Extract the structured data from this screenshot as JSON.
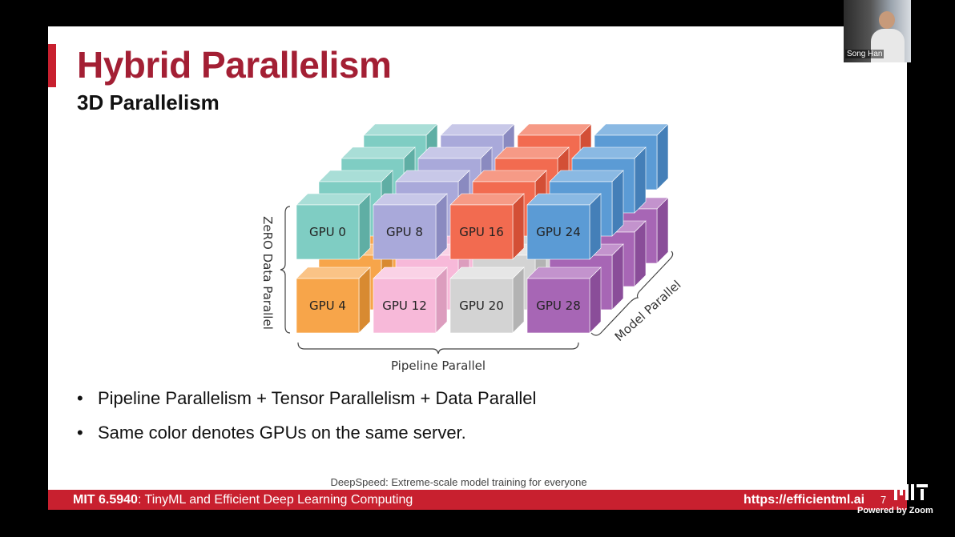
{
  "zoom": {
    "participant_name": "Song Han",
    "powered_by": "Powered by Zoom"
  },
  "slide": {
    "title": "Hybrid Parallelism",
    "subtitle": "3D Parallelism",
    "diagram": {
      "top_row": [
        "GPU 0",
        "GPU 8",
        "GPU 16",
        "GPU 24"
      ],
      "bottom_row": [
        "GPU 4",
        "GPU 12",
        "GPU 20",
        "GPU 28"
      ],
      "vertical_axis": "ZeRO Data Parallel",
      "horizontal_axis": "Pipeline Parallel",
      "depth_axis": "Model Parallel"
    },
    "bullets": [
      "Pipeline Parallelism + Tensor Parallelism + Data Parallel",
      "Same color denotes GPUs on the same server."
    ],
    "citation": "DeepSpeed: Extreme-scale model training for everyone",
    "footer": {
      "course_code": "MIT 6.5940",
      "course_name": ": TinyML and Efficient Deep Learning Computing",
      "url": "https://efficientml.ai",
      "page": "7"
    }
  }
}
